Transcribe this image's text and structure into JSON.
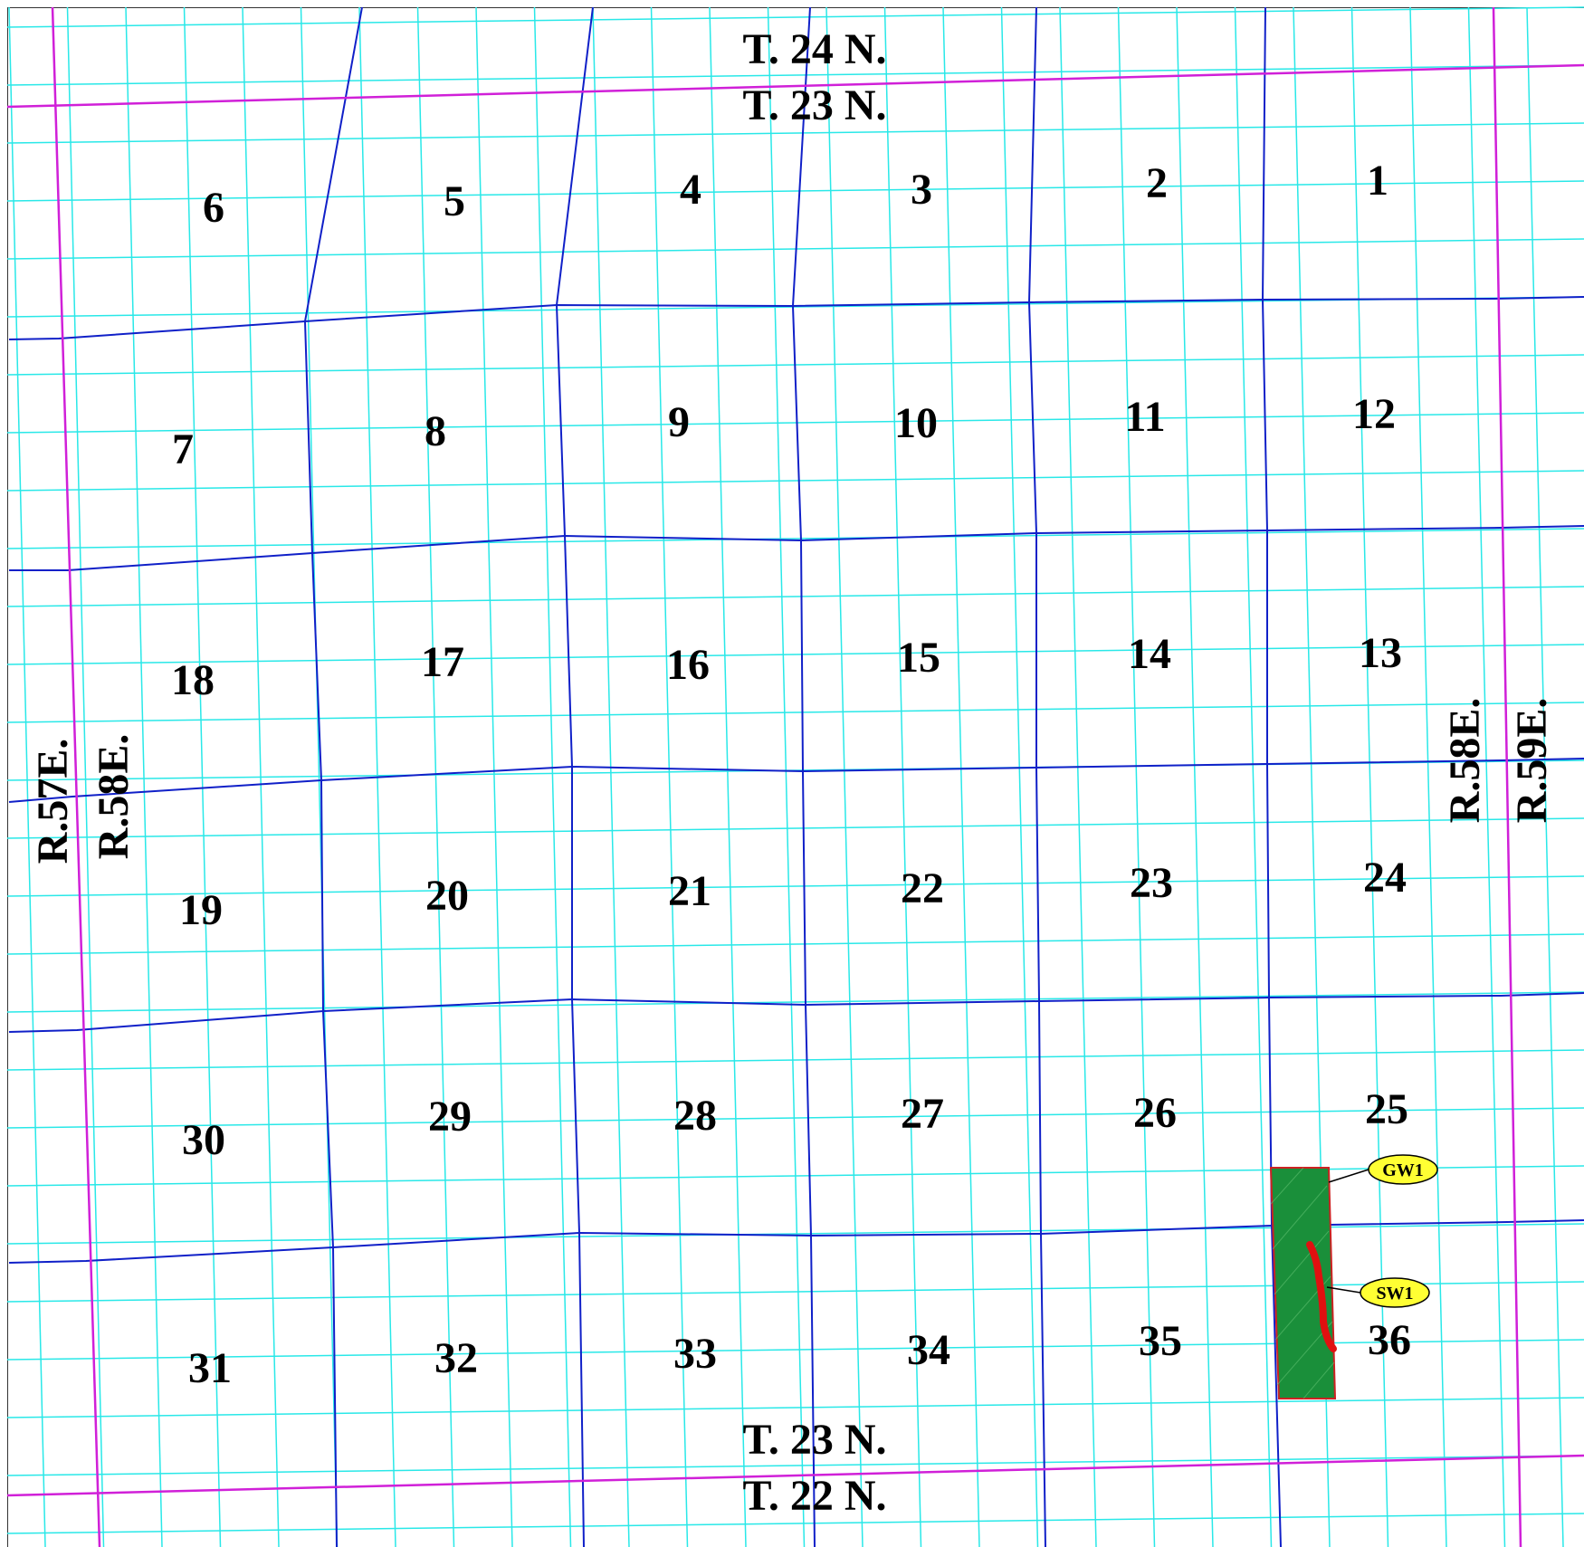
{
  "map": {
    "township_labels": {
      "top_upper": "T. 24 N.",
      "top_lower": "T. 23 N.",
      "bottom_upper": "T. 23 N.",
      "bottom_lower": "T. 22 N."
    },
    "range_labels": {
      "left_outer": "R.57E.",
      "left_inner": "R.58E.",
      "right_inner": "R.58E.",
      "right_outer": "R.59E."
    },
    "sections": [
      "1",
      "2",
      "3",
      "4",
      "5",
      "6",
      "7",
      "8",
      "9",
      "10",
      "11",
      "12",
      "13",
      "14",
      "15",
      "16",
      "17",
      "18",
      "19",
      "20",
      "21",
      "22",
      "23",
      "24",
      "25",
      "26",
      "27",
      "28",
      "29",
      "30",
      "31",
      "32",
      "33",
      "34",
      "35",
      "36"
    ],
    "features": {
      "gw1_label": "GW1",
      "sw1_label": "SW1"
    },
    "colors": {
      "quarter_line": "#29e8e8",
      "section_line": "#1020c8",
      "township_line": "#d020d8",
      "feature_fill": "#1a8f3a",
      "feature_border": "#cc2222",
      "stream": "#e01010",
      "callout_fill": "#ffff33"
    }
  }
}
